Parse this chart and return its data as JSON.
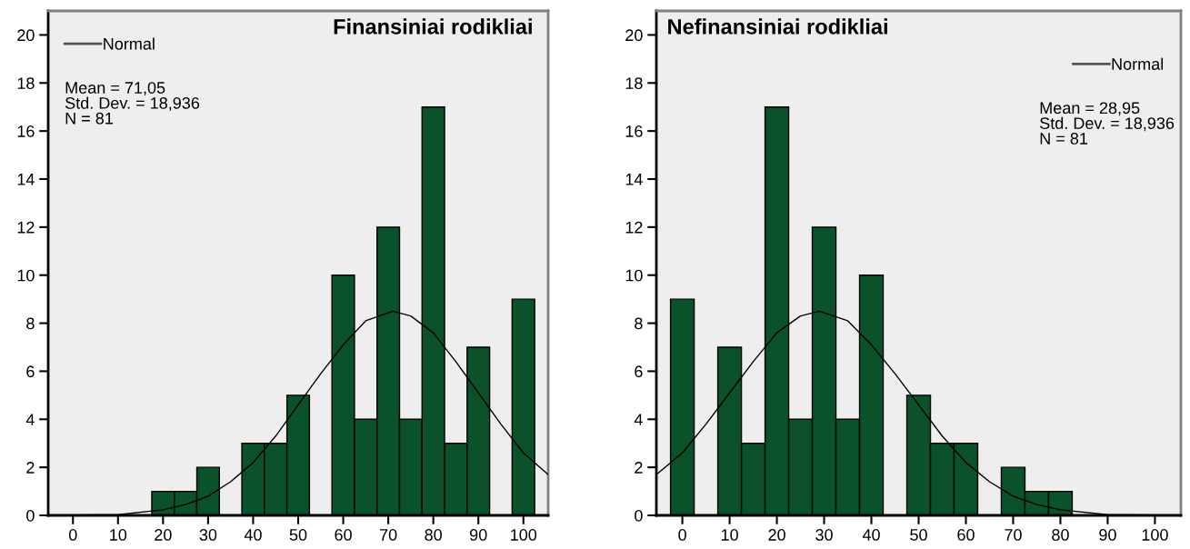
{
  "chart_data": [
    {
      "type": "histogram",
      "title": "Finansiniai rodikliai",
      "color": "#0b5129",
      "bins": [
        17.5,
        22.5,
        27.5,
        32.5,
        37.5,
        42.5,
        47.5,
        52.5,
        57.5,
        62.5,
        67.5,
        72.5,
        77.5,
        82.5,
        87.5,
        92.5,
        97.5,
        102.5
      ],
      "values": [
        1,
        1,
        2,
        0,
        3,
        3,
        5,
        0,
        10,
        4,
        12,
        4,
        17,
        3,
        7,
        0,
        9
      ],
      "series": [
        {
          "type": "line",
          "name": "Normal",
          "color": "#000000",
          "x": [
            -5.5,
            0,
            10,
            20,
            25,
            30,
            35,
            40,
            45,
            50,
            55,
            60,
            65,
            71,
            75,
            80,
            85,
            90,
            95,
            100,
            105.5
          ],
          "values": [
            0.0,
            0.01,
            0.03,
            0.23,
            0.45,
            0.8,
            1.4,
            2.2,
            3.3,
            4.6,
            5.9,
            7.1,
            8.1,
            8.5,
            8.3,
            7.6,
            6.4,
            5.1,
            3.8,
            2.6,
            1.7
          ]
        }
      ],
      "annotations": [
        "Mean = 71,05\nStd. Dev. = 18,936\nN = 81"
      ],
      "legend": "top left",
      "xlim": [
        -5.5,
        105.5
      ],
      "ylim": [
        0,
        21
      ],
      "xticks": [
        0,
        10,
        20,
        30,
        40,
        50,
        60,
        70,
        80,
        90,
        100
      ],
      "yticks": [
        0,
        2,
        4,
        6,
        8,
        10,
        12,
        14,
        16,
        18,
        20
      ],
      "grid": false
    },
    {
      "type": "histogram",
      "title": "Nefinansiniai rodikliai",
      "color": "#0b5129",
      "bins": [
        -2.5,
        2.5,
        7.5,
        12.5,
        17.5,
        22.5,
        27.5,
        32.5,
        37.5,
        42.5,
        47.5,
        52.5,
        57.5,
        62.5,
        67.5,
        72.5,
        77.5,
        82.5
      ],
      "values": [
        9,
        0,
        7,
        3,
        17,
        4,
        12,
        4,
        10,
        0,
        5,
        3,
        3,
        0,
        2,
        1,
        1
      ],
      "series": [
        {
          "type": "line",
          "name": "Normal",
          "color": "#000000",
          "x": [
            -5.5,
            0,
            5,
            10,
            15,
            20,
            25,
            29,
            35,
            40,
            45,
            50,
            55,
            60,
            65,
            70,
            75,
            80,
            90,
            100,
            105.5
          ],
          "values": [
            1.7,
            2.6,
            3.8,
            5.1,
            6.4,
            7.6,
            8.3,
            8.5,
            8.1,
            7.1,
            5.9,
            4.6,
            3.3,
            2.2,
            1.4,
            0.8,
            0.45,
            0.23,
            0.03,
            0.01,
            0.0
          ]
        }
      ],
      "annotations": [
        "Mean = 28,95\nStd. Dev. = 18,936\nN = 81"
      ],
      "legend": "top right",
      "xlim": [
        -5.5,
        105.5
      ],
      "ylim": [
        0,
        21
      ],
      "xticks": [
        0,
        10,
        20,
        30,
        40,
        50,
        60,
        70,
        80,
        90,
        100
      ],
      "yticks": [
        0,
        2,
        4,
        6,
        8,
        10,
        12,
        14,
        16,
        18,
        20
      ],
      "grid": false
    }
  ]
}
